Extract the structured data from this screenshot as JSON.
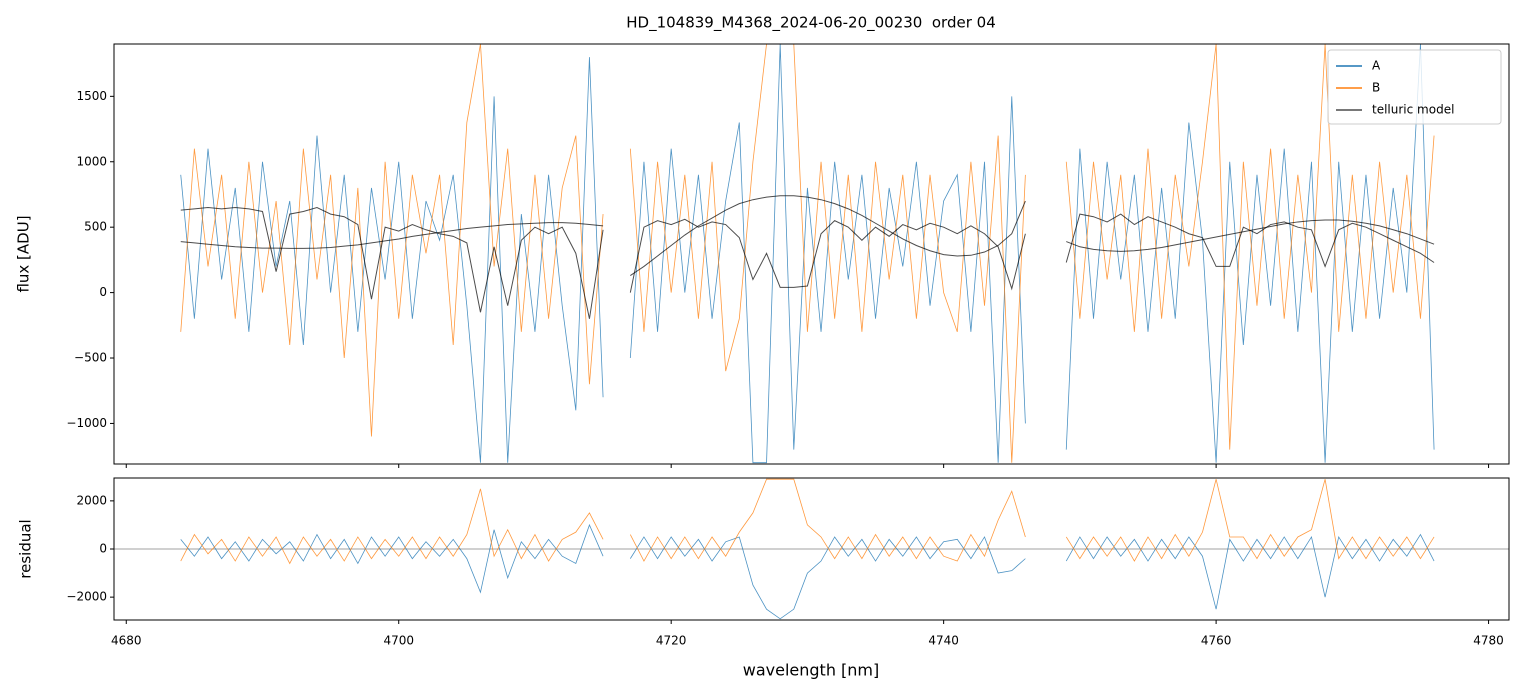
{
  "chart_data": [
    {
      "type": "line",
      "title": "HD_104839_M4368_2024-06-20_00230  order 04",
      "y_label": "flux [ADU]",
      "x": [
        4684,
        4685,
        4686,
        4687,
        4688,
        4689,
        4690,
        4691,
        4692,
        4693,
        4694,
        4695,
        4696,
        4697,
        4698,
        4699,
        4700,
        4701,
        4702,
        4703,
        4704,
        4705,
        4706,
        4707,
        4708,
        4709,
        4710,
        4711,
        4712,
        4713,
        4714,
        4715,
        4716,
        4717,
        4718,
        4719,
        4720,
        4721,
        4722,
        4723,
        4724,
        4725,
        4726,
        4727,
        4728,
        4729,
        4730,
        4731,
        4732,
        4733,
        4734,
        4735,
        4736,
        4737,
        4738,
        4739,
        4740,
        4741,
        4742,
        4743,
        4744,
        4745,
        4746,
        4747,
        4748,
        4749,
        4750,
        4751,
        4752,
        4753,
        4754,
        4755,
        4756,
        4757,
        4758,
        4759,
        4760,
        4761,
        4762,
        4763,
        4764,
        4765,
        4766,
        4767,
        4768,
        4769,
        4770,
        4771,
        4772,
        4773,
        4774,
        4775,
        4776
      ],
      "series": [
        {
          "name": "A",
          "color": "#1f77b4",
          "values": [
            900,
            -200,
            1100,
            100,
            800,
            -300,
            1000,
            200,
            700,
            -400,
            1200,
            0,
            900,
            -300,
            800,
            100,
            1000,
            -200,
            700,
            400,
            900,
            -100,
            -1300,
            1500,
            -1300,
            600,
            -300,
            900,
            -100,
            -900,
            1800,
            -800,
            null,
            -500,
            1000,
            -300,
            1100,
            0,
            900,
            -200,
            700,
            1300,
            -1300,
            -1300,
            1900,
            -1200,
            800,
            -300,
            1000,
            100,
            900,
            -200,
            800,
            200,
            1000,
            -100,
            700,
            900,
            -300,
            1000,
            -1300,
            1500,
            -1000,
            null,
            null,
            -1200,
            1100,
            -200,
            1000,
            100,
            900,
            -300,
            800,
            -200,
            1300,
            400,
            -1300,
            1000,
            -400,
            900,
            -100,
            1100,
            -300,
            1000,
            -1300,
            1000,
            -300,
            900,
            -200,
            800,
            0,
            1900,
            -1200
          ]
        },
        {
          "name": "B",
          "color": "#ff7f0e",
          "values": [
            -300,
            1100,
            200,
            900,
            -200,
            1000,
            0,
            700,
            -400,
            1100,
            100,
            900,
            -500,
            800,
            -1100,
            1000,
            -200,
            900,
            300,
            900,
            -400,
            1300,
            1900,
            200,
            1100,
            -300,
            900,
            -200,
            800,
            1200,
            -700,
            600,
            null,
            1100,
            -300,
            1000,
            0,
            900,
            -200,
            1000,
            -600,
            -200,
            1000,
            1900,
            1900,
            1900,
            -300,
            1000,
            -200,
            900,
            -300,
            1000,
            100,
            900,
            -200,
            900,
            0,
            -300,
            1000,
            -100,
            1200,
            -1300,
            900,
            null,
            null,
            1000,
            -200,
            1000,
            100,
            900,
            -300,
            1100,
            -200,
            900,
            200,
            1000,
            1900,
            -1200,
            1000,
            -100,
            1100,
            -200,
            900,
            0,
            1900,
            -300,
            900,
            -200,
            1000,
            0,
            900,
            -200,
            1200
          ]
        },
        {
          "name": "telluric model",
          "color": "#000000",
          "values": [
            630,
            640,
            650,
            640,
            650,
            640,
            620,
            160,
            600,
            620,
            650,
            600,
            580,
            520,
            -50,
            500,
            470,
            520,
            480,
            450,
            430,
            380,
            -150,
            350,
            -100,
            400,
            500,
            450,
            500,
            300,
            -200,
            480,
            null,
            0,
            500,
            550,
            520,
            560,
            500,
            540,
            520,
            420,
            100,
            300,
            40,
            40,
            50,
            450,
            550,
            500,
            400,
            500,
            430,
            520,
            480,
            530,
            500,
            450,
            510,
            450,
            350,
            30,
            450,
            null,
            null,
            230,
            600,
            580,
            540,
            600,
            520,
            580,
            540,
            500,
            450,
            420,
            200,
            200,
            500,
            450,
            520,
            540,
            500,
            480,
            200,
            480,
            530,
            500,
            450,
            400,
            350,
            300,
            230
          ]
        },
        {
          "color": "#000000",
          "values": [
            390,
            380,
            370,
            360,
            350,
            345,
            340,
            340,
            338,
            338,
            340,
            345,
            355,
            365,
            380,
            395,
            410,
            430,
            445,
            460,
            475,
            490,
            500,
            510,
            520,
            525,
            530,
            535,
            535,
            530,
            520,
            510,
            null,
            130,
            200,
            280,
            360,
            440,
            510,
            570,
            630,
            680,
            710,
            730,
            740,
            740,
            730,
            710,
            680,
            640,
            590,
            530,
            470,
            410,
            360,
            320,
            290,
            280,
            285,
            310,
            360,
            450,
            700,
            null,
            null,
            390,
            350,
            330,
            320,
            315,
            320,
            330,
            345,
            365,
            385,
            405,
            425,
            445,
            465,
            485,
            505,
            525,
            540,
            550,
            555,
            555,
            545,
            530,
            510,
            480,
            450,
            410,
            370
          ]
        }
      ],
      "xlim": [
        4679.1,
        4781.5
      ],
      "xticks": [
        4680,
        4700,
        4720,
        4740,
        4760,
        4780
      ],
      "ylim": [
        -1310,
        1900
      ],
      "yticks": [
        {
          "value": -1000,
          "label": "−1000"
        },
        {
          "value": -500,
          "label": "−500"
        },
        0,
        500,
        1000,
        1500
      ],
      "legend": "upper right"
    },
    {
      "type": "line",
      "x_label": "wavelength [nm]",
      "y_label": "residual",
      "x": [
        4684,
        4685,
        4686,
        4687,
        4688,
        4689,
        4690,
        4691,
        4692,
        4693,
        4694,
        4695,
        4696,
        4697,
        4698,
        4699,
        4700,
        4701,
        4702,
        4703,
        4704,
        4705,
        4706,
        4707,
        4708,
        4709,
        4710,
        4711,
        4712,
        4713,
        4714,
        4715,
        4716,
        4717,
        4718,
        4719,
        4720,
        4721,
        4722,
        4723,
        4724,
        4725,
        4726,
        4727,
        4728,
        4729,
        4730,
        4731,
        4732,
        4733,
        4734,
        4735,
        4736,
        4737,
        4738,
        4739,
        4740,
        4741,
        4742,
        4743,
        4744,
        4745,
        4746,
        4747,
        4748,
        4749,
        4750,
        4751,
        4752,
        4753,
        4754,
        4755,
        4756,
        4757,
        4758,
        4759,
        4760,
        4761,
        4762,
        4763,
        4764,
        4765,
        4766,
        4767,
        4768,
        4769,
        4770,
        4771,
        4772,
        4773,
        4774,
        4775,
        4776
      ],
      "series": [
        {
          "color": "#1f77b4",
          "values": [
            400,
            -300,
            500,
            -400,
            300,
            -500,
            400,
            -200,
            300,
            -500,
            600,
            -400,
            400,
            -600,
            500,
            -300,
            500,
            -400,
            300,
            -300,
            400,
            -400,
            -1800,
            800,
            -1200,
            300,
            -400,
            400,
            -300,
            -600,
            1000,
            -300,
            null,
            -400,
            500,
            -400,
            500,
            -300,
            400,
            -500,
            300,
            500,
            -1500,
            -2500,
            -2900,
            -2500,
            -1000,
            -500,
            500,
            -300,
            400,
            -500,
            400,
            -300,
            500,
            -400,
            300,
            400,
            -400,
            500,
            -1000,
            -900,
            -400,
            null,
            null,
            -500,
            500,
            -400,
            500,
            -300,
            400,
            -500,
            400,
            -400,
            500,
            -300,
            -2500,
            400,
            -500,
            400,
            -400,
            500,
            -400,
            500,
            -2000,
            500,
            -400,
            400,
            -500,
            400,
            -300,
            600,
            -500
          ]
        },
        {
          "color": "#ff7f0e",
          "values": [
            -500,
            600,
            -200,
            400,
            -500,
            500,
            -300,
            500,
            -600,
            500,
            -300,
            400,
            -500,
            500,
            -400,
            400,
            -300,
            500,
            -400,
            500,
            -300,
            600,
            2500,
            -300,
            800,
            -400,
            600,
            -500,
            400,
            700,
            1500,
            400,
            null,
            600,
            -500,
            500,
            -400,
            500,
            -400,
            500,
            -300,
            700,
            1500,
            2900,
            2900,
            2900,
            1000,
            500,
            -400,
            500,
            -400,
            600,
            -300,
            500,
            -400,
            500,
            -300,
            -500,
            600,
            -300,
            1200,
            2400,
            500,
            null,
            null,
            500,
            -400,
            500,
            -300,
            500,
            -500,
            500,
            -400,
            600,
            -300,
            700,
            2900,
            500,
            500,
            -400,
            600,
            -300,
            500,
            800,
            2900,
            -400,
            500,
            -400,
            500,
            -300,
            500,
            -400,
            500
          ]
        }
      ],
      "xlim": [
        4679.1,
        4781.5
      ],
      "xticks": [
        4680,
        4700,
        4720,
        4740,
        4760,
        4780
      ],
      "ylim": [
        -2950,
        2950
      ],
      "yticks": [
        {
          "value": -2000,
          "label": "−2000"
        },
        0,
        2000
      ],
      "zero_line": true
    }
  ]
}
